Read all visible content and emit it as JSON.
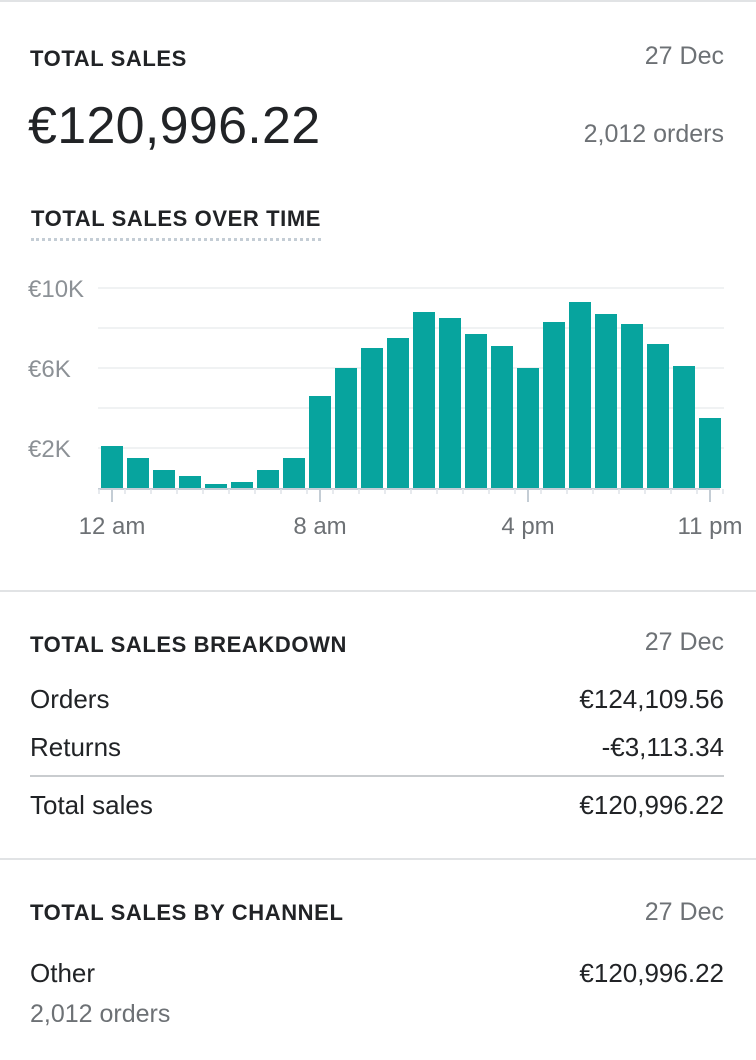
{
  "summary": {
    "title": "TOTAL SALES",
    "date": "27 Dec",
    "amount": "€120,996.22",
    "orders": "2,012 orders"
  },
  "chart_section": {
    "title": "TOTAL SALES OVER TIME"
  },
  "chart_data": {
    "type": "bar",
    "x": [
      "12 am",
      "1 am",
      "2 am",
      "3 am",
      "4 am",
      "5 am",
      "6 am",
      "7 am",
      "8 am",
      "9 am",
      "10 am",
      "11 am",
      "12 pm",
      "1 pm",
      "2 pm",
      "3 pm",
      "4 pm",
      "5 pm",
      "6 pm",
      "7 pm",
      "8 pm",
      "9 pm",
      "10 pm",
      "11 pm"
    ],
    "values": [
      2100,
      1500,
      900,
      600,
      200,
      300,
      900,
      1500,
      4600,
      6000,
      7000,
      7500,
      8800,
      8500,
      7700,
      7100,
      6000,
      8300,
      9300,
      8700,
      8200,
      7200,
      6100,
      3500
    ],
    "ylim": [
      0,
      10000
    ],
    "yticks": [
      {
        "value": 2000,
        "label": "€2K"
      },
      {
        "value": 6000,
        "label": "€6K"
      },
      {
        "value": 10000,
        "label": "€10K"
      }
    ],
    "xticks": [
      {
        "index": 0,
        "label": "12 am"
      },
      {
        "index": 8,
        "label": "8 am"
      },
      {
        "index": 16,
        "label": "4 pm"
      },
      {
        "index": 23,
        "label": "11 pm"
      }
    ],
    "grid": true,
    "bar_color": "#07a49e"
  },
  "breakdown": {
    "title": "TOTAL SALES BREAKDOWN",
    "date": "27 Dec",
    "rows": [
      {
        "label": "Orders",
        "value": "€124,109.56"
      },
      {
        "label": "Returns",
        "value": "-€3,113.34"
      }
    ],
    "total": {
      "label": "Total sales",
      "value": "€120,996.22"
    }
  },
  "by_channel": {
    "title": "TOTAL SALES BY CHANNEL",
    "date": "27 Dec",
    "channel": {
      "label": "Other",
      "value": "€120,996.22",
      "orders": "2,012 orders"
    }
  },
  "colors": {
    "accent": "#07a49e",
    "text": "#212326",
    "muted": "#6d7175",
    "divider": "#e1e3e5"
  }
}
